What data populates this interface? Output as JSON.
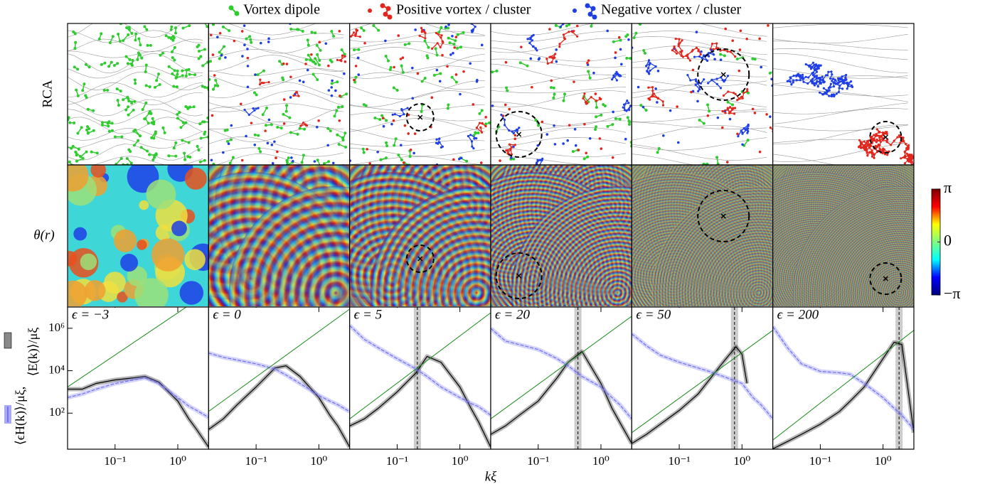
{
  "legend": [
    {
      "label": "Vortex dipole",
      "color": "#2ecc2e"
    },
    {
      "label": "Positive vortex / cluster",
      "color": "#e3261c"
    },
    {
      "label": "Negative vortex / cluster",
      "color": "#1f3fe6"
    }
  ],
  "row_labels": [
    "RCA",
    "θ(r)"
  ],
  "colorbar": {
    "lim": [
      -3.14159,
      3.14159
    ],
    "ticks": [
      {
        "value": 3.14159,
        "label": "π"
      },
      0,
      {
        "value": -3.14159,
        "label": "−π"
      }
    ]
  },
  "x_label": "kξ",
  "y_label": [
    "⟨ϵH(k)⟩/μξ,",
    "⟨E(k)⟩/μξ"
  ],
  "chart_data": [
    {
      "type": "line",
      "title": "ϵ = −3",
      "xlim": [
        0.0175,
        3.1
      ],
      "ylim": [
        2,
        10000000
      ],
      "xticks": [
        {
          "value": 0.1,
          "label": "10⁻¹"
        },
        {
          "value": 1,
          "label": "10⁰"
        }
      ],
      "yticks": [
        {
          "value": 100,
          "label": "10²"
        },
        {
          "value": 10000,
          "label": "10⁴"
        },
        {
          "value": 1000000,
          "label": "10⁶"
        }
      ],
      "series": [
        {
          "color": "#000000",
          "x": [
            0.0175,
            0.03,
            0.05,
            0.1,
            0.2,
            0.3,
            0.5,
            1,
            1.5,
            2,
            3.1
          ],
          "values": [
            1350,
            1350,
            2500,
            3700,
            4600,
            5400,
            2900,
            370,
            54,
            17,
            2.5
          ]
        },
        {
          "color": "#6f6ff0",
          "x": [
            0.0175,
            0.03,
            0.05,
            0.1,
            0.2,
            0.3,
            0.5,
            1,
            1.5,
            2,
            3.1
          ],
          "values": [
            540,
            800,
            1350,
            2500,
            3700,
            4600,
            2500,
            540,
            215,
            135,
            63
          ]
        },
        {
          "color": "#1a8a1a",
          "x": [
            0.0175,
            1.37
          ],
          "values": [
            1700,
            10000000
          ]
        }
      ]
    },
    {
      "type": "line",
      "title": "ϵ = 0",
      "xlim": [
        0.0175,
        3.1
      ],
      "ylim": [
        2,
        10000000
      ],
      "xticks": [
        {
          "value": 0.1,
          "label": "10⁻¹"
        },
        {
          "value": 1,
          "label": "10⁰"
        }
      ],
      "series": [
        {
          "color": "#000000",
          "x": [
            0.0175,
            0.03,
            0.05,
            0.1,
            0.2,
            0.3,
            0.5,
            1,
            1.5,
            2,
            3.1
          ],
          "values": [
            17,
            54,
            250,
            1700,
            13500,
            17000,
            5400,
            540,
            80,
            25,
            2.5
          ]
        },
        {
          "color": "#6f6ff0",
          "x": [
            0.0175,
            0.03,
            0.05,
            0.1,
            0.2,
            0.3,
            0.5,
            1,
            1.5,
            2,
            3.1
          ],
          "values": [
            68000,
            43000,
            32000,
            21000,
            12000,
            6300,
            2500,
            680,
            370,
            250,
            117
          ]
        },
        {
          "color": "#1a8a1a",
          "x": [
            0.0175,
            3.1
          ],
          "values": [
            120,
            8000000
          ]
        }
      ]
    },
    {
      "type": "line",
      "title": "ϵ = 5",
      "xlim": [
        0.0175,
        3.1
      ],
      "ylim": [
        2,
        10000000
      ],
      "vline": 0.21,
      "xticks": [
        {
          "value": 0.1,
          "label": "10⁻¹"
        },
        {
          "value": 1,
          "label": "10⁰"
        }
      ],
      "series": [
        {
          "color": "#000000",
          "x": [
            0.0175,
            0.03,
            0.05,
            0.1,
            0.2,
            0.3,
            0.5,
            1,
            1.5,
            2,
            3.1
          ],
          "values": [
            25,
            54,
            170,
            1000,
            8000,
            47000,
            25000,
            1700,
            170,
            37,
            2.5
          ]
        },
        {
          "color": "#6f6ff0",
          "x": [
            0.0175,
            0.03,
            0.05,
            0.1,
            0.2,
            0.3,
            0.5,
            1,
            1.5,
            2,
            3.1
          ],
          "values": [
            1350000,
            300000,
            120000,
            37000,
            12000,
            5400,
            1700,
            540,
            290,
            200,
            80
          ]
        },
        {
          "color": "#1a8a1a",
          "x": [
            0.0175,
            3.1
          ],
          "values": [
            54,
            5400000
          ]
        }
      ]
    },
    {
      "type": "line",
      "title": "ϵ = 20",
      "xlim": [
        0.0175,
        3.1
      ],
      "ylim": [
        2,
        10000000
      ],
      "vline": 0.43,
      "xticks": [
        {
          "value": 0.1,
          "label": "10⁻¹"
        },
        {
          "value": 1,
          "label": "10⁰"
        }
      ],
      "series": [
        {
          "color": "#000000",
          "x": [
            0.0175,
            0.03,
            0.05,
            0.1,
            0.2,
            0.3,
            0.5,
            1,
            1.5,
            2,
            3.1
          ],
          "values": [
            10,
            25,
            80,
            370,
            4600,
            25000,
            80000,
            2500,
            170,
            37,
            3.7
          ]
        },
        {
          "color": "#6f6ff0",
          "x": [
            0.0175,
            0.03,
            0.05,
            0.1,
            0.2,
            0.3,
            0.5,
            1,
            1.5,
            2,
            3.1
          ],
          "values": [
            1000000,
            250000,
            170000,
            100000,
            37000,
            17000,
            5400,
            1700,
            540,
            250,
            54
          ]
        },
        {
          "color": "#1a8a1a",
          "x": [
            0.0175,
            3.1
          ],
          "values": [
            54,
            3700000
          ]
        }
      ]
    },
    {
      "type": "line",
      "title": "ϵ = 50",
      "xlim": [
        0.0175,
        3.1
      ],
      "ylim": [
        2,
        10000000
      ],
      "vline": 0.76,
      "xticks": [
        {
          "value": 0.1,
          "label": "10⁻¹"
        },
        {
          "value": 1,
          "label": "10⁰"
        }
      ],
      "series": [
        {
          "color": "#000000",
          "x": [
            0.0175,
            0.03,
            0.05,
            0.1,
            0.2,
            0.3,
            0.5,
            0.8,
            1,
            1.2
          ],
          "values": [
            3.7,
            10,
            30,
            135,
            800,
            3700,
            25000,
            135000,
            60000,
            2500
          ]
        },
        {
          "color": "#6f6ff0",
          "x": [
            0.0175,
            0.03,
            0.05,
            0.1,
            0.2,
            0.3,
            0.5,
            1,
            1.5,
            2,
            3.1
          ],
          "values": [
            540000,
            150000,
            54000,
            25000,
            13500,
            9300,
            5400,
            2500,
            540,
            250,
            54
          ]
        },
        {
          "color": "#1a8a1a",
          "x": [
            0.0175,
            3.1
          ],
          "values": [
            12,
            800000
          ]
        }
      ]
    },
    {
      "type": "line",
      "title": "ϵ = 200",
      "xlim": [
        0.0175,
        3.1
      ],
      "ylim": [
        2,
        10000000
      ],
      "vline": 1.8,
      "xticks": [
        {
          "value": 0.1,
          "label": "10⁻¹"
        },
        {
          "value": 1,
          "label": "10⁰"
        }
      ],
      "series": [
        {
          "color": "#000000",
          "x": [
            0.0175,
            0.03,
            0.05,
            0.1,
            0.2,
            0.3,
            0.5,
            1,
            1.5,
            2,
            3.1
          ],
          "values": [
            2.1,
            4.6,
            10,
            30,
            117,
            370,
            1700,
            37000,
            220000,
            170000,
            12
          ]
        },
        {
          "color": "#6f6ff0",
          "x": [
            0.0175,
            0.03,
            0.05,
            0.1,
            0.2,
            0.3,
            0.5,
            1,
            1.5,
            2,
            3.1
          ],
          "values": [
            1200000,
            120000,
            21000,
            9300,
            8000,
            6800,
            2500,
            540,
            170,
            80,
            17
          ]
        },
        {
          "color": "#1a8a1a",
          "x": [
            0.0175,
            3.1
          ],
          "values": [
            5.4,
            800000
          ]
        }
      ]
    }
  ]
}
